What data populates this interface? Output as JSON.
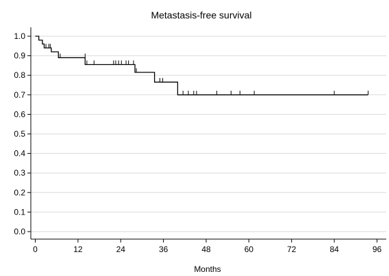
{
  "chart_data": {
    "type": "line",
    "subtype": "kaplan-meier step",
    "title": "Metastasis-free survival",
    "xlabel": "Months",
    "ylabel": "",
    "xlim": [
      0,
      96
    ],
    "ylim": [
      0,
      1.0
    ],
    "x_ticks": [
      "0",
      "12",
      "24",
      "36",
      "48",
      "60",
      "72",
      "84",
      "96"
    ],
    "y_ticks": [
      "0.0",
      "0.1",
      "0.2",
      "0.3",
      "0.4",
      "0.5",
      "0.6",
      "0.7",
      "0.8",
      "0.9",
      "1.0"
    ],
    "grid": "horizontal",
    "series": [
      {
        "color": "#000000",
        "steps": [
          {
            "x": 0,
            "y": 1.0
          },
          {
            "x": 1,
            "y": 0.98
          },
          {
            "x": 2,
            "y": 0.96
          },
          {
            "x": 2.5,
            "y": 0.94
          },
          {
            "x": 4.5,
            "y": 0.92
          },
          {
            "x": 6.5,
            "y": 0.89
          },
          {
            "x": 14,
            "y": 0.855
          },
          {
            "x": 28,
            "y": 0.815
          },
          {
            "x": 33.5,
            "y": 0.765
          },
          {
            "x": 40,
            "y": 0.7
          },
          {
            "x": 93.5,
            "y": 0.7
          }
        ],
        "censored": [
          {
            "x": 3.0,
            "y": 0.94
          },
          {
            "x": 3.8,
            "y": 0.94
          },
          {
            "x": 4.2,
            "y": 0.94
          },
          {
            "x": 7.0,
            "y": 0.89
          },
          {
            "x": 14.0,
            "y": 0.89
          },
          {
            "x": 14.5,
            "y": 0.855
          },
          {
            "x": 16.5,
            "y": 0.855
          },
          {
            "x": 22.0,
            "y": 0.855
          },
          {
            "x": 22.6,
            "y": 0.855
          },
          {
            "x": 23.4,
            "y": 0.855
          },
          {
            "x": 24.2,
            "y": 0.855
          },
          {
            "x": 25.5,
            "y": 0.855
          },
          {
            "x": 26.2,
            "y": 0.855
          },
          {
            "x": 27.6,
            "y": 0.855
          },
          {
            "x": 28.4,
            "y": 0.815
          },
          {
            "x": 35.0,
            "y": 0.765
          },
          {
            "x": 35.8,
            "y": 0.765
          },
          {
            "x": 41.5,
            "y": 0.7
          },
          {
            "x": 43.0,
            "y": 0.7
          },
          {
            "x": 44.5,
            "y": 0.7
          },
          {
            "x": 45.3,
            "y": 0.7
          },
          {
            "x": 51.0,
            "y": 0.7
          },
          {
            "x": 55.0,
            "y": 0.7
          },
          {
            "x": 57.5,
            "y": 0.7
          },
          {
            "x": 61.5,
            "y": 0.7
          },
          {
            "x": 84.0,
            "y": 0.7
          },
          {
            "x": 93.5,
            "y": 0.7
          }
        ]
      }
    ]
  }
}
